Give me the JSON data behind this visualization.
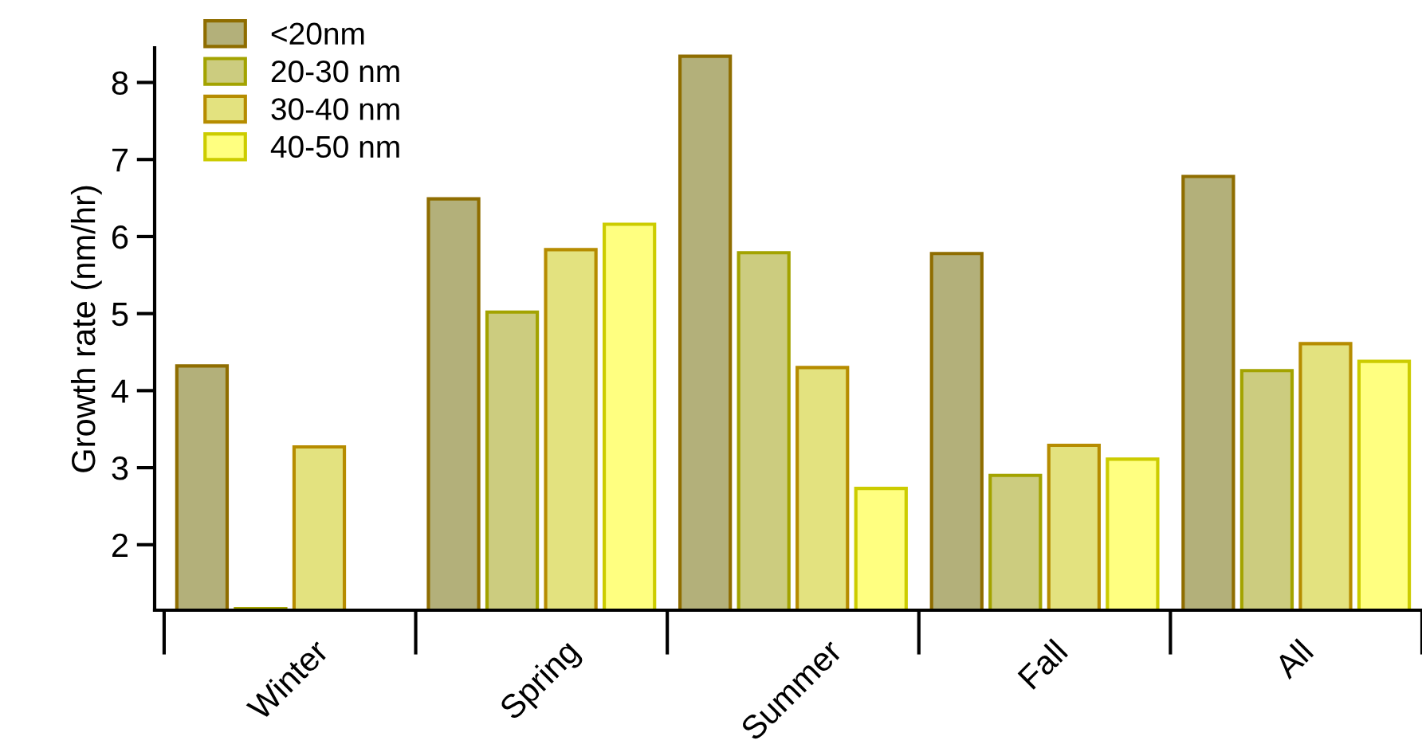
{
  "chart_data": {
    "type": "bar",
    "ylabel": "Growth rate (nm/hr)",
    "categories": [
      "Winter",
      "Spring",
      "Summer",
      "Fall",
      "All"
    ],
    "series": [
      {
        "name": "<20nm",
        "color": "#b3b07a",
        "values": [
          4.32,
          6.49,
          8.34,
          5.78,
          6.78
        ]
      },
      {
        "name": "20-30 nm",
        "color": "#cccc7f",
        "values": [
          1.17,
          5.02,
          5.79,
          2.9,
          4.26
        ]
      },
      {
        "name": "30-40 nm",
        "color": "#e3e27f",
        "values": [
          3.27,
          5.83,
          4.3,
          3.29,
          4.61
        ]
      },
      {
        "name": "40-50 nm",
        "color": "#ffff80",
        "values": [
          null,
          6.16,
          2.73,
          3.11,
          4.38
        ]
      }
    ],
    "ylim": [
      1.15,
      8.45
    ],
    "yticks": [
      2,
      3,
      4,
      5,
      6,
      7,
      8
    ],
    "grid": false,
    "legend": "top left"
  }
}
